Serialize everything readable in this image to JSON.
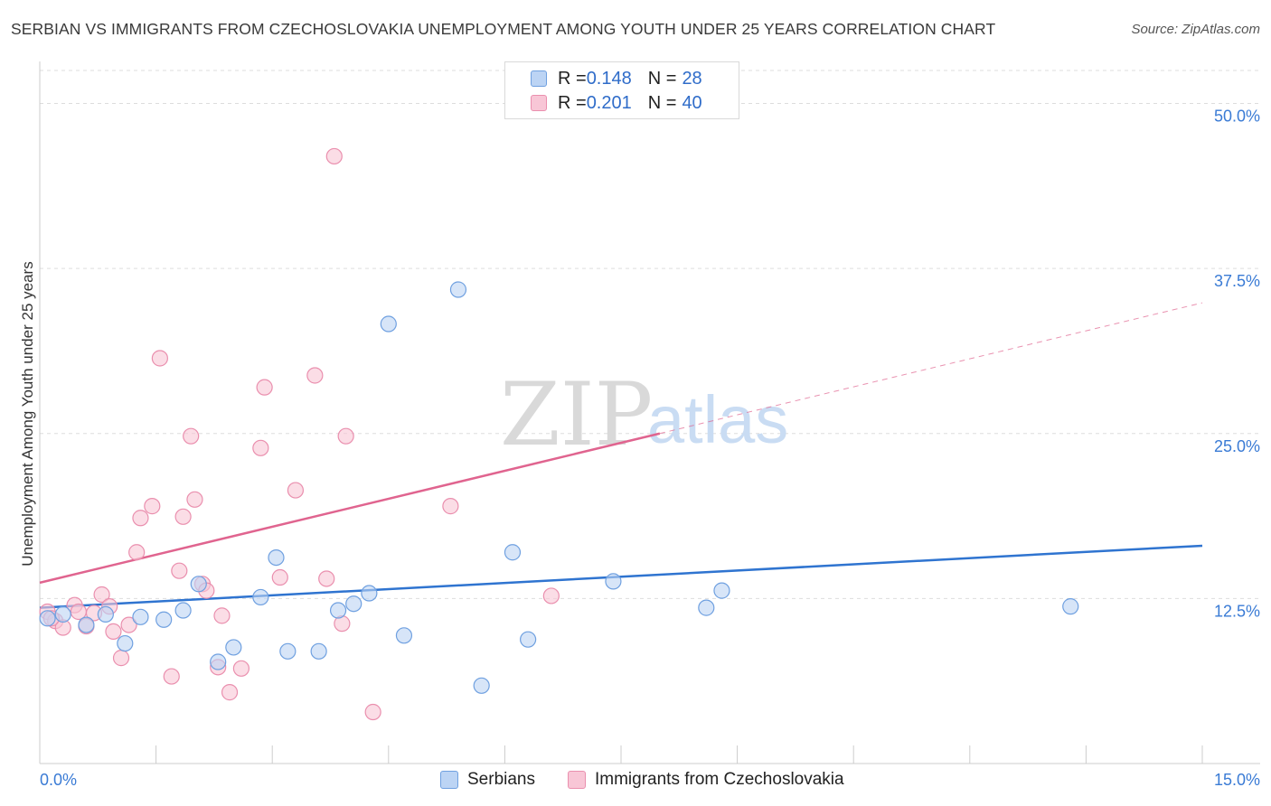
{
  "title": "SERBIAN VS IMMIGRANTS FROM CZECHOSLOVAKIA UNEMPLOYMENT AMONG YOUTH UNDER 25 YEARS CORRELATION CHART",
  "source": "Source: ZipAtlas.com",
  "watermark": {
    "zip": "ZIP",
    "atlas": "atlas"
  },
  "colors": {
    "serbians_fill": "#bcd4f4",
    "serbians_stroke": "#6fa0e0",
    "serbians_line": "#2f74d0",
    "czech_fill": "#f8c6d6",
    "czech_stroke": "#ea8fae",
    "czech_line": "#e0648f",
    "axis_text": "#3a7bd5",
    "grid": "#dddddd"
  },
  "legend_top": [
    {
      "r_label": "R = ",
      "r_value": "0.148",
      "n_label": "N = ",
      "n_value": "28"
    },
    {
      "r_label": "R = ",
      "r_value": "0.201",
      "n_label": "N = ",
      "n_value": "40"
    }
  ],
  "chart_data": {
    "type": "scatter",
    "title": "SERBIAN VS IMMIGRANTS FROM CZECHOSLOVAKIA UNEMPLOYMENT AMONG YOUTH UNDER 25 YEARS CORRELATION CHART",
    "xlabel": "",
    "ylabel": "Unemployment Among Youth under 25 years",
    "xlim": [
      0,
      15
    ],
    "ylim": [
      0,
      52.5
    ],
    "x_tick_labels": [
      "0.0%",
      "15.0%"
    ],
    "y_ticks": [
      12.5,
      25.0,
      37.5,
      50.0
    ],
    "y_tick_labels": [
      "12.5%",
      "25.0%",
      "37.5%",
      "50.0%"
    ],
    "grid": true,
    "series": [
      {
        "name": "Serbians",
        "r": 0.148,
        "n": 28,
        "trend": {
          "x0": 0,
          "y0": 11.8,
          "x1": 15,
          "y1": 16.5
        },
        "points": [
          [
            0.1,
            11.0
          ],
          [
            0.3,
            11.3
          ],
          [
            0.6,
            10.5
          ],
          [
            0.85,
            11.3
          ],
          [
            1.1,
            9.1
          ],
          [
            1.3,
            11.1
          ],
          [
            1.6,
            10.9
          ],
          [
            1.85,
            11.6
          ],
          [
            2.05,
            13.6
          ],
          [
            2.3,
            7.7
          ],
          [
            2.5,
            8.8
          ],
          [
            2.85,
            12.6
          ],
          [
            3.05,
            15.6
          ],
          [
            3.2,
            8.5
          ],
          [
            3.6,
            8.5
          ],
          [
            3.85,
            11.6
          ],
          [
            4.05,
            12.1
          ],
          [
            4.25,
            12.9
          ],
          [
            4.5,
            33.3
          ],
          [
            4.7,
            9.7
          ],
          [
            5.4,
            35.9
          ],
          [
            5.7,
            5.9
          ],
          [
            6.1,
            16.0
          ],
          [
            6.3,
            9.4
          ],
          [
            7.4,
            13.8
          ],
          [
            8.6,
            11.8
          ],
          [
            8.8,
            13.1
          ],
          [
            13.3,
            11.9
          ]
        ]
      },
      {
        "name": "Immigrants from Czechoslovakia",
        "r": 0.201,
        "n": 40,
        "trend": {
          "x0": 0,
          "y0": 13.7,
          "x1": 8.0,
          "y1": 25.0
        },
        "trend_dashed": {
          "x0": 8.0,
          "y0": 25.0,
          "x1": 15,
          "y1": 34.9
        },
        "points": [
          [
            0.1,
            11.5
          ],
          [
            0.2,
            10.8
          ],
          [
            0.3,
            10.3
          ],
          [
            0.45,
            12.0
          ],
          [
            0.5,
            11.5
          ],
          [
            0.6,
            10.4
          ],
          [
            0.8,
            12.8
          ],
          [
            0.9,
            11.9
          ],
          [
            0.95,
            10.0
          ],
          [
            1.05,
            8.0
          ],
          [
            1.15,
            10.5
          ],
          [
            1.25,
            16.0
          ],
          [
            1.3,
            18.6
          ],
          [
            1.45,
            19.5
          ],
          [
            1.55,
            30.7
          ],
          [
            1.7,
            6.6
          ],
          [
            1.8,
            14.6
          ],
          [
            1.85,
            18.7
          ],
          [
            1.95,
            24.8
          ],
          [
            2.0,
            20.0
          ],
          [
            2.1,
            13.6
          ],
          [
            2.15,
            13.1
          ],
          [
            2.3,
            7.3
          ],
          [
            2.35,
            11.2
          ],
          [
            2.45,
            5.4
          ],
          [
            2.6,
            7.2
          ],
          [
            2.85,
            23.9
          ],
          [
            2.9,
            28.5
          ],
          [
            3.1,
            14.1
          ],
          [
            3.3,
            20.7
          ],
          [
            3.55,
            29.4
          ],
          [
            3.7,
            14.0
          ],
          [
            3.8,
            46.0
          ],
          [
            3.9,
            10.6
          ],
          [
            3.95,
            24.8
          ],
          [
            4.3,
            3.9
          ],
          [
            5.3,
            19.5
          ],
          [
            6.6,
            12.7
          ],
          [
            0.15,
            11.0
          ],
          [
            0.7,
            11.4
          ]
        ]
      }
    ]
  },
  "bottom_legend": [
    "Serbians",
    "Immigrants from Czechoslovakia"
  ]
}
